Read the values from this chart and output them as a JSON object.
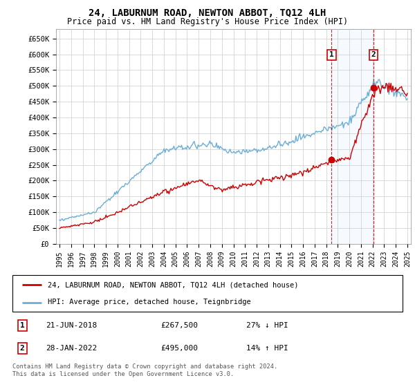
{
  "title": "24, LABURNUM ROAD, NEWTON ABBOT, TQ12 4LH",
  "subtitle": "Price paid vs. HM Land Registry's House Price Index (HPI)",
  "ylabel_ticks": [
    "£0",
    "£50K",
    "£100K",
    "£150K",
    "£200K",
    "£250K",
    "£300K",
    "£350K",
    "£400K",
    "£450K",
    "£500K",
    "£550K",
    "£600K",
    "£650K"
  ],
  "ytick_values": [
    0,
    50000,
    100000,
    150000,
    200000,
    250000,
    300000,
    350000,
    400000,
    450000,
    500000,
    550000,
    600000,
    650000
  ],
  "ylim": [
    0,
    680000
  ],
  "xlim_start": 1995,
  "xlim_end": 2025,
  "transaction1": {
    "date": "21-JUN-2018",
    "price": 267500,
    "label": "1",
    "pct": "27% ↓ HPI",
    "x": 2018.47
  },
  "transaction2": {
    "date": "28-JAN-2022",
    "price": 495000,
    "label": "2",
    "pct": "14% ↑ HPI",
    "x": 2022.08
  },
  "hpi_color": "#6baed6",
  "price_color": "#cc0000",
  "marker_color": "#cc0000",
  "annotation_line_color": "#cc0000",
  "shade_color": "#ddeeff",
  "legend_label1": "24, LABURNUM ROAD, NEWTON ABBOT, TQ12 4LH (detached house)",
  "legend_label2": "HPI: Average price, detached house, Teignbridge",
  "table_row1": [
    "1",
    "21-JUN-2018",
    "£267,500",
    "27% ↓ HPI"
  ],
  "table_row2": [
    "2",
    "28-JAN-2022",
    "£495,000",
    "14% ↑ HPI"
  ],
  "footnote": "Contains HM Land Registry data © Crown copyright and database right 2024.\nThis data is licensed under the Open Government Licence v3.0.",
  "background_color": "#ffffff",
  "grid_color": "#cccccc"
}
